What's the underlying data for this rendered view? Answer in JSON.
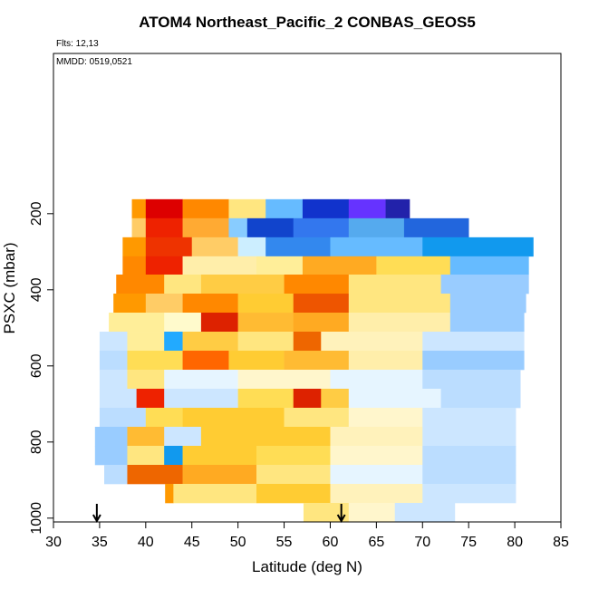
{
  "chart_data": {
    "type": "curtain",
    "title": "ATOM4 Northeast_Pacific_2 CONBAS_GEOS5",
    "flights": "Flts: 12,13",
    "dates": "MMDD: 0519,0521",
    "xlabel": "Latitude (deg N)",
    "ylabel": "PSXC (mbar)",
    "xlim": [
      30,
      85
    ],
    "xticks": [
      30,
      35,
      40,
      45,
      50,
      55,
      60,
      65,
      70,
      75,
      80,
      85
    ],
    "ylim": [
      1010,
      -221
    ],
    "yticks": [
      200,
      400,
      600,
      800,
      1000
    ],
    "arrows": [
      34.7,
      61.2
    ],
    "bands": [
      {
        "p": [
          162,
          212
        ],
        "segments": [
          {
            "lat": [
              38.5,
              40
            ],
            "color": "#ff9900"
          },
          {
            "lat": [
              40,
              44
            ],
            "color": "#dd0000"
          },
          {
            "lat": [
              44,
              49
            ],
            "color": "#ff8800"
          },
          {
            "lat": [
              49,
              53
            ],
            "color": "#ffe680"
          },
          {
            "lat": [
              53,
              57
            ],
            "color": "#66bbff"
          },
          {
            "lat": [
              57,
              62
            ],
            "color": "#1133cc"
          },
          {
            "lat": [
              62,
              66
            ],
            "color": "#6633ff"
          },
          {
            "lat": [
              66,
              68.6
            ],
            "color": "#2222aa"
          }
        ]
      },
      {
        "p": [
          212,
          262
        ],
        "segments": [
          {
            "lat": [
              38.5,
              40
            ],
            "color": "#ffcc66"
          },
          {
            "lat": [
              40,
              44
            ],
            "color": "#ee2200"
          },
          {
            "lat": [
              44,
              49
            ],
            "color": "#ffaa33"
          },
          {
            "lat": [
              49,
              51
            ],
            "color": "#88ccff"
          },
          {
            "lat": [
              51,
              56
            ],
            "color": "#1144cc"
          },
          {
            "lat": [
              56,
              62
            ],
            "color": "#3377ee"
          },
          {
            "lat": [
              62,
              68
            ],
            "color": "#55aaee"
          },
          {
            "lat": [
              68,
              75
            ],
            "color": "#2266dd"
          }
        ]
      },
      {
        "p": [
          262,
          312
        ],
        "segments": [
          {
            "lat": [
              37.5,
              40
            ],
            "color": "#ff9900"
          },
          {
            "lat": [
              40,
              45
            ],
            "color": "#ee3300"
          },
          {
            "lat": [
              45,
              50
            ],
            "color": "#ffcc66"
          },
          {
            "lat": [
              50,
              53
            ],
            "color": "#cceeff"
          },
          {
            "lat": [
              53,
              60
            ],
            "color": "#3388ee"
          },
          {
            "lat": [
              60,
              70
            ],
            "color": "#66bbff"
          },
          {
            "lat": [
              70,
              82
            ],
            "color": "#1199ee"
          }
        ]
      },
      {
        "p": [
          312,
          360
        ],
        "segments": [
          {
            "lat": [
              37.5,
              40
            ],
            "color": "#ff8800"
          },
          {
            "lat": [
              40,
              44
            ],
            "color": "#ee2200"
          },
          {
            "lat": [
              44,
              52
            ],
            "color": "#ffeeaa"
          },
          {
            "lat": [
              52,
              57
            ],
            "color": "#ffee99"
          },
          {
            "lat": [
              57,
              65
            ],
            "color": "#ffaa22"
          },
          {
            "lat": [
              65,
              73
            ],
            "color": "#ffdd55"
          },
          {
            "lat": [
              73,
              81.5
            ],
            "color": "#66bbff"
          }
        ]
      },
      {
        "p": [
          360,
          410
        ],
        "segments": [
          {
            "lat": [
              36.8,
              42
            ],
            "color": "#ff8800"
          },
          {
            "lat": [
              42,
              46
            ],
            "color": "#ffe680"
          },
          {
            "lat": [
              46,
              55
            ],
            "color": "#ffcc44"
          },
          {
            "lat": [
              55,
              62
            ],
            "color": "#ff8800"
          },
          {
            "lat": [
              62,
              72
            ],
            "color": "#ffe680"
          },
          {
            "lat": [
              72,
              81.5
            ],
            "color": "#99ccff"
          }
        ]
      },
      {
        "p": [
          410,
          460
        ],
        "segments": [
          {
            "lat": [
              36.5,
              40
            ],
            "color": "#ff9900"
          },
          {
            "lat": [
              40,
              44
            ],
            "color": "#ffcc66"
          },
          {
            "lat": [
              44,
              50
            ],
            "color": "#ff8800"
          },
          {
            "lat": [
              50,
              56
            ],
            "color": "#ffcc33"
          },
          {
            "lat": [
              56,
              62
            ],
            "color": "#ee5500"
          },
          {
            "lat": [
              62,
              73
            ],
            "color": "#ffe680"
          },
          {
            "lat": [
              73,
              81.2
            ],
            "color": "#99ccff"
          }
        ]
      },
      {
        "p": [
          460,
          510
        ],
        "segments": [
          {
            "lat": [
              36,
              42
            ],
            "color": "#ffee99"
          },
          {
            "lat": [
              42,
              46
            ],
            "color": "#fffacc"
          },
          {
            "lat": [
              46,
              50
            ],
            "color": "#dd2200"
          },
          {
            "lat": [
              50,
              56
            ],
            "color": "#ffbb33"
          },
          {
            "lat": [
              56,
              62
            ],
            "color": "#ffaa22"
          },
          {
            "lat": [
              62,
              73
            ],
            "color": "#ffeeaa"
          },
          {
            "lat": [
              73,
              81
            ],
            "color": "#99ccff"
          }
        ]
      },
      {
        "p": [
          510,
          560
        ],
        "segments": [
          {
            "lat": [
              35,
              38
            ],
            "color": "#cce6ff"
          },
          {
            "lat": [
              38,
              42
            ],
            "color": "#ffee99"
          },
          {
            "lat": [
              42,
              44
            ],
            "color": "#22aaff"
          },
          {
            "lat": [
              44,
              50
            ],
            "color": "#ffcc44"
          },
          {
            "lat": [
              50,
              56
            ],
            "color": "#ffe680"
          },
          {
            "lat": [
              56,
              59
            ],
            "color": "#ee6600"
          },
          {
            "lat": [
              59,
              70
            ],
            "color": "#fff2bb"
          },
          {
            "lat": [
              70,
              81
            ],
            "color": "#cce6ff"
          }
        ]
      },
      {
        "p": [
          560,
          610
        ],
        "segments": [
          {
            "lat": [
              35,
              38
            ],
            "color": "#bbddff"
          },
          {
            "lat": [
              38,
              44
            ],
            "color": "#ffdd55"
          },
          {
            "lat": [
              44,
              49
            ],
            "color": "#ff6600"
          },
          {
            "lat": [
              49,
              55
            ],
            "color": "#ffcc33"
          },
          {
            "lat": [
              55,
              62
            ],
            "color": "#ffbb33"
          },
          {
            "lat": [
              62,
              70
            ],
            "color": "#ffeeaa"
          },
          {
            "lat": [
              70,
              81
            ],
            "color": "#99ccff"
          }
        ]
      },
      {
        "p": [
          610,
          660
        ],
        "segments": [
          {
            "lat": [
              35,
              38
            ],
            "color": "#cce6ff"
          },
          {
            "lat": [
              38,
              42
            ],
            "color": "#ffe680"
          },
          {
            "lat": [
              42,
              50
            ],
            "color": "#e6f5ff"
          },
          {
            "lat": [
              50,
              60
            ],
            "color": "#fff6cc"
          },
          {
            "lat": [
              60,
              70
            ],
            "color": "#e6f5ff"
          },
          {
            "lat": [
              70,
              80.6
            ],
            "color": "#bbddff"
          }
        ]
      },
      {
        "p": [
          660,
          710
        ],
        "segments": [
          {
            "lat": [
              35,
              39
            ],
            "color": "#cce6ff"
          },
          {
            "lat": [
              39,
              42
            ],
            "color": "#ee2200"
          },
          {
            "lat": [
              42,
              50
            ],
            "color": "#cce6ff"
          },
          {
            "lat": [
              50,
              56
            ],
            "color": "#ffdd55"
          },
          {
            "lat": [
              56,
              59
            ],
            "color": "#dd2200"
          },
          {
            "lat": [
              59,
              62
            ],
            "color": "#ffcc44"
          },
          {
            "lat": [
              62,
              72
            ],
            "color": "#e6f5ff"
          },
          {
            "lat": [
              72,
              80.6
            ],
            "color": "#bbddff"
          }
        ]
      },
      {
        "p": [
          710,
          760
        ],
        "segments": [
          {
            "lat": [
              35,
              40
            ],
            "color": "#bbddff"
          },
          {
            "lat": [
              40,
              44
            ],
            "color": "#ffdd55"
          },
          {
            "lat": [
              44,
              55
            ],
            "color": "#ffcc33"
          },
          {
            "lat": [
              55,
              62
            ],
            "color": "#ffe680"
          },
          {
            "lat": [
              62,
              70
            ],
            "color": "#fff6cc"
          },
          {
            "lat": [
              70,
              80.1
            ],
            "color": "#cce6ff"
          }
        ]
      },
      {
        "p": [
          760,
          810
        ],
        "segments": [
          {
            "lat": [
              34.5,
              38
            ],
            "color": "#99ccff"
          },
          {
            "lat": [
              38,
              42
            ],
            "color": "#ffbb33"
          },
          {
            "lat": [
              42,
              46
            ],
            "color": "#cce6ff"
          },
          {
            "lat": [
              46,
              60
            ],
            "color": "#ffcc33"
          },
          {
            "lat": [
              60,
              70
            ],
            "color": "#fff2bb"
          },
          {
            "lat": [
              70,
              80.1
            ],
            "color": "#cce6ff"
          }
        ]
      },
      {
        "p": [
          810,
          860
        ],
        "segments": [
          {
            "lat": [
              34.5,
              38
            ],
            "color": "#99ccff"
          },
          {
            "lat": [
              38,
              42
            ],
            "color": "#ffe680"
          },
          {
            "lat": [
              42,
              44
            ],
            "color": "#1199ee"
          },
          {
            "lat": [
              44,
              52
            ],
            "color": "#ffcc33"
          },
          {
            "lat": [
              52,
              60
            ],
            "color": "#ffdd55"
          },
          {
            "lat": [
              60,
              70
            ],
            "color": "#fff6cc"
          },
          {
            "lat": [
              70,
              80.1
            ],
            "color": "#bbddff"
          }
        ]
      },
      {
        "p": [
          860,
          910
        ],
        "segments": [
          {
            "lat": [
              35.5,
              38
            ],
            "color": "#bbddff"
          },
          {
            "lat": [
              38,
              44
            ],
            "color": "#ee6600"
          },
          {
            "lat": [
              44,
              52
            ],
            "color": "#ffaa22"
          },
          {
            "lat": [
              52,
              60
            ],
            "color": "#ffe680"
          },
          {
            "lat": [
              60,
              70
            ],
            "color": "#e6f5ff"
          },
          {
            "lat": [
              70,
              80.1
            ],
            "color": "#bbddff"
          }
        ]
      },
      {
        "p": [
          910,
          960
        ],
        "segments": [
          {
            "lat": [
              42.1,
              43
            ],
            "color": "#ff9900"
          },
          {
            "lat": [
              43,
              52
            ],
            "color": "#ffe680"
          },
          {
            "lat": [
              52,
              60
            ],
            "color": "#ffcc33"
          },
          {
            "lat": [
              60,
              70
            ],
            "color": "#fff2bb"
          },
          {
            "lat": [
              70,
              80.1
            ],
            "color": "#cce6ff"
          }
        ]
      },
      {
        "p": [
          960,
          1010
        ],
        "segments": [
          {
            "lat": [
              57.1,
              62
            ],
            "color": "#ffe680"
          },
          {
            "lat": [
              62,
              67
            ],
            "color": "#fff6cc"
          },
          {
            "lat": [
              67,
              73.5
            ],
            "color": "#cce6ff"
          }
        ]
      }
    ]
  }
}
